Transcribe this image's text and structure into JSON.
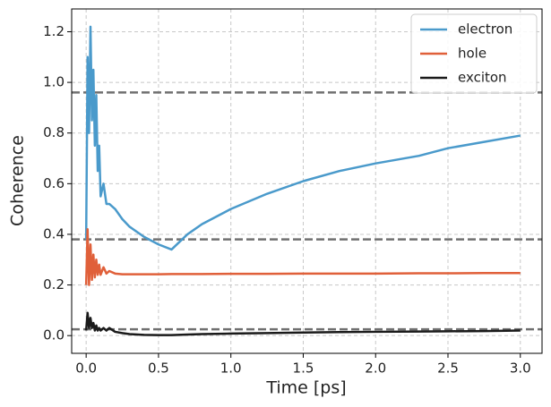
{
  "chart_data": {
    "type": "line",
    "x_label": "Time [ps]",
    "y_label": "Coherence",
    "x": [
      0,
      0.01,
      0.02,
      0.03,
      0.04,
      0.05,
      0.06,
      0.07,
      0.08,
      0.09,
      0.1,
      0.12,
      0.14,
      0.16,
      0.2,
      0.25,
      0.3,
      0.4,
      0.5,
      0.59,
      0.7,
      0.8,
      1.0,
      1.25,
      1.5,
      1.75,
      2.0,
      2.3,
      2.5,
      2.75,
      3.0
    ],
    "series": [
      {
        "name": "electron",
        "color": "#4a9acb",
        "values": [
          0.38,
          1.1,
          0.8,
          1.22,
          0.85,
          1.05,
          0.75,
          0.95,
          0.65,
          0.75,
          0.55,
          0.6,
          0.52,
          0.52,
          0.5,
          0.46,
          0.43,
          0.39,
          0.36,
          0.34,
          0.4,
          0.44,
          0.5,
          0.56,
          0.61,
          0.65,
          0.68,
          0.71,
          0.74,
          0.765,
          0.79
        ]
      },
      {
        "name": "hole",
        "color": "#e0603a",
        "values": [
          0.2,
          0.42,
          0.2,
          0.36,
          0.22,
          0.32,
          0.23,
          0.3,
          0.24,
          0.28,
          0.24,
          0.27,
          0.245,
          0.255,
          0.245,
          0.242,
          0.242,
          0.242,
          0.242,
          0.243,
          0.243,
          0.243,
          0.244,
          0.244,
          0.245,
          0.245,
          0.245,
          0.246,
          0.246,
          0.247,
          0.247
        ]
      },
      {
        "name": "exciton",
        "color": "#1a1a1a",
        "values": [
          0.02,
          0.09,
          0.03,
          0.07,
          0.03,
          0.05,
          0.02,
          0.04,
          0.02,
          0.03,
          0.02,
          0.03,
          0.02,
          0.03,
          0.015,
          0.01,
          0.006,
          0.003,
          0.002,
          0.002,
          0.004,
          0.006,
          0.008,
          0.01,
          0.012,
          0.014,
          0.015,
          0.016,
          0.017,
          0.018,
          0.02
        ]
      }
    ],
    "hlines": [
      0.96,
      0.38,
      0.025
    ],
    "hline_color": "#707070",
    "xlim": [
      -0.1,
      3.15
    ],
    "ylim": [
      -0.07,
      1.29
    ],
    "xticks": [
      {
        "value": 0,
        "label": "0.0"
      },
      {
        "value": 0.5,
        "label": "0.5"
      },
      {
        "value": 1,
        "label": "1.0"
      },
      {
        "value": 1.5,
        "label": "1.5"
      },
      {
        "value": 2,
        "label": "2.0"
      },
      {
        "value": 2.5,
        "label": "2.5"
      },
      {
        "value": 3,
        "label": "3.0"
      }
    ],
    "yticks": [
      {
        "value": 0,
        "label": "0.0"
      },
      {
        "value": 0.2,
        "label": "0.2"
      },
      {
        "value": 0.4,
        "label": "0.4"
      },
      {
        "value": 0.6,
        "label": "0.6"
      },
      {
        "value": 0.8,
        "label": "0.8"
      },
      {
        "value": 1,
        "label": "1.0"
      },
      {
        "value": 1.2,
        "label": "1.2"
      }
    ],
    "grid": true,
    "legend": "upper-right"
  }
}
